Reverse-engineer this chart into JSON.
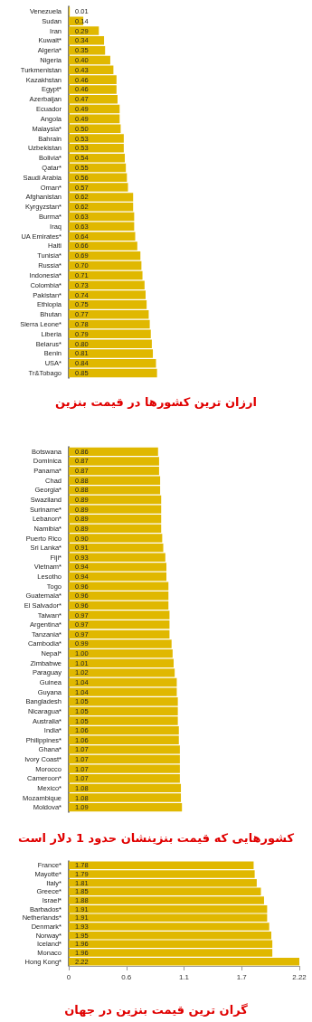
{
  "chart_data": [
    {
      "type": "bar",
      "orientation": "horizontal",
      "title": "ارزان ترین کشورها در قیمت بنزین",
      "color": "#e0b800",
      "tick_labels": "y",
      "xlim": [
        0,
        2.22
      ],
      "categories": [
        "Venezuela",
        "Sudan",
        "Iran",
        "Kuwait*",
        "Algeria*",
        "Nigeria",
        "Turkmenistan",
        "Kazakhstan",
        "Egypt*",
        "Azerbaijan",
        "Ecuador",
        "Angola",
        "Malaysia*",
        "Bahrain",
        "Uzbekistan",
        "Bolivia*",
        "Qatar*",
        "Saudi Arabia",
        "Oman*",
        "Afghanistan",
        "Kyrgyzstan*",
        "Burma*",
        "Iraq",
        "UA Emirates*",
        "Haiti",
        "Tunisia*",
        "Russia*",
        "Indonesia*",
        "Colombia*",
        "Pakistan*",
        "Ethiopia",
        "Bhutan",
        "Sierra Leone*",
        "Liberia",
        "Belarus*",
        "Benin",
        "USA*",
        "Tr&Tobago"
      ],
      "values": [
        0.01,
        0.14,
        0.29,
        0.34,
        0.35,
        0.4,
        0.43,
        0.46,
        0.46,
        0.47,
        0.49,
        0.49,
        0.5,
        0.53,
        0.53,
        0.54,
        0.55,
        0.56,
        0.57,
        0.62,
        0.62,
        0.63,
        0.63,
        0.64,
        0.66,
        0.69,
        0.7,
        0.71,
        0.73,
        0.74,
        0.75,
        0.77,
        0.78,
        0.79,
        0.8,
        0.81,
        0.84,
        0.85
      ],
      "value_labels": [
        "0.01",
        "0.14",
        "0.29",
        "0.34",
        "0.35",
        "0.40",
        "0.43",
        "0.46",
        "0.46",
        "0.47",
        "0.49",
        "0.49",
        "0.50",
        "0.53",
        "0.53",
        "0.54",
        "0.55",
        "0.56",
        "0.57",
        "0.62",
        "0.62",
        "0.63",
        "0.63",
        "0.64",
        "0.66",
        "0.69",
        "0.70",
        "0.71",
        "0.73",
        "0.74",
        "0.75",
        "0.77",
        "0.78",
        "0.79",
        "0.80",
        "0.81",
        "0.84",
        "0.85"
      ]
    },
    {
      "type": "bar",
      "orientation": "horizontal",
      "title": "کشورهایی که قیمت بنزینشان حدود 1 دلار است",
      "color": "#e0b800",
      "tick_labels": "y",
      "xlim": [
        0,
        2.22
      ],
      "categories": [
        "Botswana",
        "Dominica",
        "Panama*",
        "Chad",
        "Georgia*",
        "Swaziland",
        "Suriname*",
        "Lebanon*",
        "Namibia*",
        "Puerto Rico",
        "Sri Lanka*",
        "Fiji*",
        "Vietnam*",
        "Lesotho",
        "Togo",
        "Guatemala*",
        "El Salvador*",
        "Taiwan*",
        "Argentina*",
        "Tanzania*",
        "Cambodia*",
        "Nepal*",
        "Zimbabwe",
        "Paraguay",
        "Guinea",
        "Guyana",
        "Bangladesh",
        "Nicaragua*",
        "Australia*",
        "India*",
        "Philippines*",
        "Ghana*",
        "Ivory Coast*",
        "Morocco",
        "Cameroon*",
        "Mexico*",
        "Mozambique",
        "Moldova*"
      ],
      "values": [
        0.86,
        0.87,
        0.87,
        0.88,
        0.88,
        0.89,
        0.89,
        0.89,
        0.89,
        0.9,
        0.91,
        0.93,
        0.94,
        0.94,
        0.96,
        0.96,
        0.96,
        0.97,
        0.97,
        0.97,
        0.99,
        1.0,
        1.01,
        1.02,
        1.04,
        1.04,
        1.05,
        1.05,
        1.05,
        1.06,
        1.06,
        1.07,
        1.07,
        1.07,
        1.07,
        1.08,
        1.08,
        1.09
      ],
      "value_labels": [
        "0.86",
        "0.87",
        "0.87",
        "0.88",
        "0.88",
        "0.89",
        "0.89",
        "0.89",
        "0.89",
        "0.90",
        "0.91",
        "0.93",
        "0.94",
        "0.94",
        "0.96",
        "0.96",
        "0.96",
        "0.97",
        "0.97",
        "0.97",
        "0.99",
        "1.00",
        "1.01",
        "1.02",
        "1.04",
        "1.04",
        "1.05",
        "1.05",
        "1.05",
        "1.06",
        "1.06",
        "1.07",
        "1.07",
        "1.07",
        "1.07",
        "1.08",
        "1.08",
        "1.09"
      ]
    },
    {
      "type": "bar",
      "orientation": "horizontal",
      "title": "گران ترین قیمت بنزین در جهان",
      "color": "#e0b800",
      "xlim": [
        0,
        2.22
      ],
      "xticks": [
        0,
        {
          "value": 0.555,
          "label": "0.6"
        },
        {
          "value": 1.11,
          "label": "1.1"
        },
        {
          "value": 1.665,
          "label": "1.7"
        },
        2.22
      ],
      "categories": [
        "France*",
        "Mayotte*",
        "Italy*",
        "Greece*",
        "Israel*",
        "Barbados*",
        "Netherlands*",
        "Denmark*",
        "Norway*",
        "Iceland*",
        "Monaco",
        "Hong Kong*"
      ],
      "values": [
        1.78,
        1.79,
        1.81,
        1.85,
        1.88,
        1.91,
        1.91,
        1.93,
        1.95,
        1.96,
        1.96,
        2.22
      ],
      "value_labels": [
        "1.78",
        "1.79",
        "1.81",
        "1.85",
        "1.88",
        "1.91",
        "1.91",
        "1.93",
        "1.95",
        "1.96",
        "1.96",
        "2.22"
      ]
    }
  ]
}
